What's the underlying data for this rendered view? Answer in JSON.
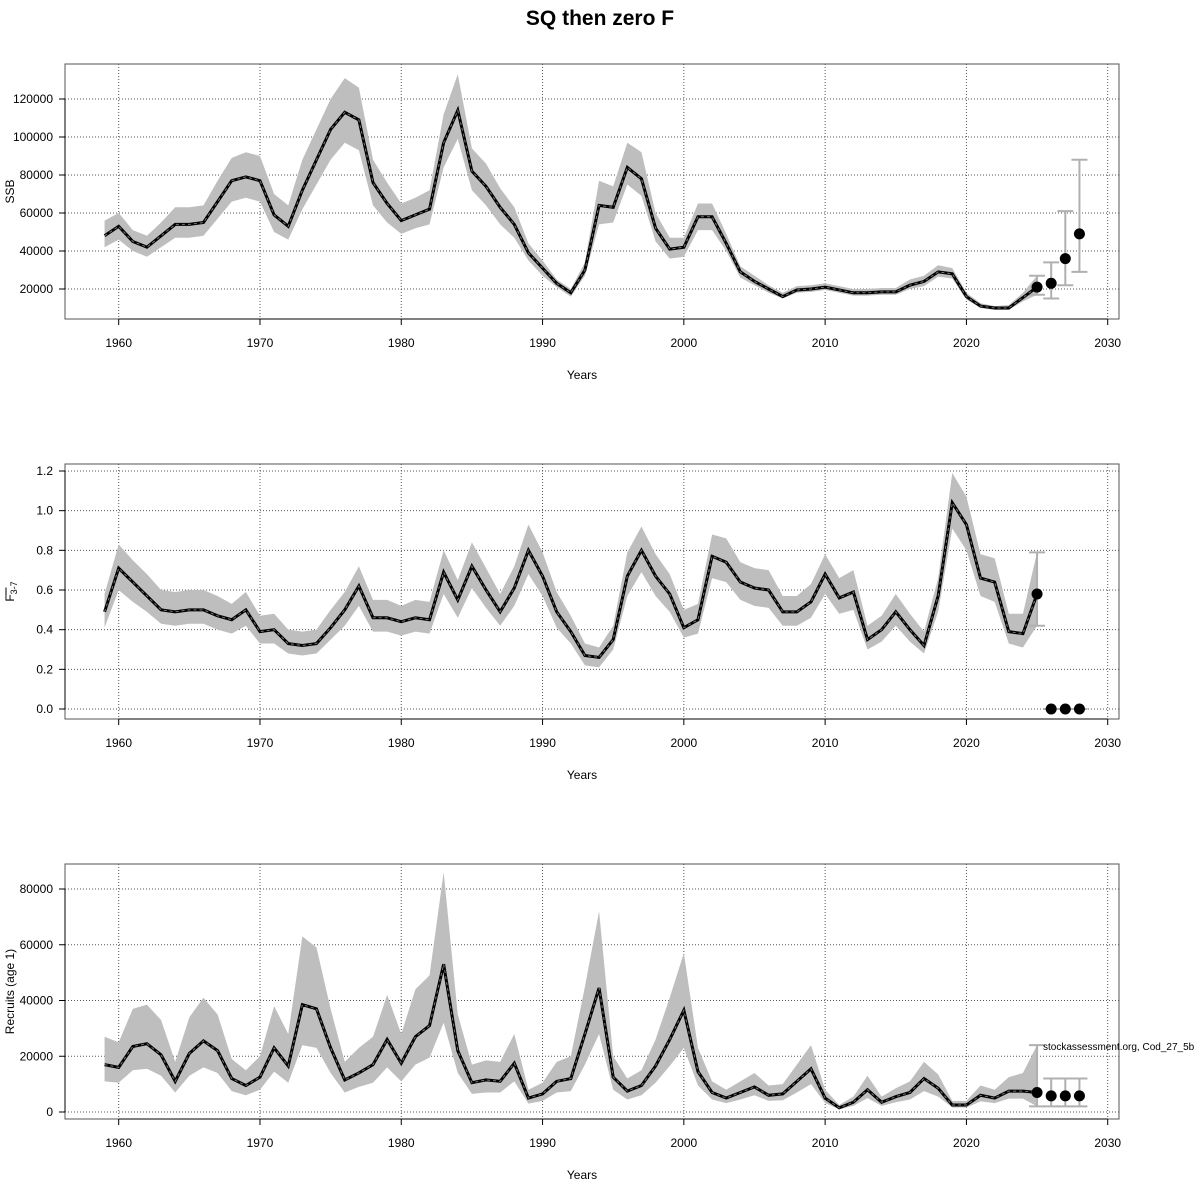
{
  "title": "SQ then zero F",
  "annotation": "stockassessment.org, Cod_27_5b",
  "colors": {
    "band": "#bebebe",
    "line": "#000000",
    "errorbar": "#b0b0b0",
    "grid": "#555555"
  },
  "chart_data": [
    {
      "type": "line",
      "name": "ssb",
      "title": "SQ then zero F",
      "xlabel": "Years",
      "ylabel": "SSB",
      "xlim": [
        1956.2,
        2030.8
      ],
      "ylim": [
        4210,
        138420
      ],
      "xticks": [
        1960,
        1970,
        1980,
        1990,
        2000,
        2010,
        2020,
        2030
      ],
      "yticks": [
        20000,
        40000,
        60000,
        80000,
        100000,
        120000
      ],
      "ytick_labels": [
        "20000",
        "40000",
        "60000",
        "80000",
        "100000",
        "120000"
      ],
      "grid": true,
      "start_year": 1959,
      "estimate": [
        48000,
        53000,
        45000,
        42000,
        48000,
        54000,
        54000,
        55000,
        66000,
        77000,
        79000,
        77000,
        59000,
        53000,
        72000,
        88000,
        104000,
        113000,
        109000,
        76000,
        65000,
        56000,
        59000,
        62000,
        97000,
        114000,
        82000,
        74000,
        63000,
        54000,
        39000,
        31000,
        23000,
        18000,
        30000,
        64000,
        63000,
        84000,
        78000,
        52000,
        41000,
        42000,
        58000,
        58000,
        44000,
        29000,
        24000,
        20000,
        16000,
        19500,
        20000,
        21000,
        19500,
        18000,
        18000,
        18500,
        18500,
        22000,
        24000,
        29000,
        28000,
        16000,
        11000,
        10000,
        10000,
        15500,
        21000
      ],
      "low": [
        42000,
        46000,
        40000,
        37000,
        42000,
        47000,
        47000,
        48000,
        57000,
        66000,
        68000,
        66000,
        50000,
        46000,
        62000,
        75000,
        88000,
        97000,
        93000,
        64000,
        55000,
        49000,
        52000,
        54000,
        84000,
        99000,
        72000,
        64000,
        54000,
        47000,
        35000,
        27000,
        21000,
        16000,
        27000,
        54000,
        55000,
        75000,
        69000,
        45000,
        36000,
        37000,
        51000,
        51000,
        40000,
        26000,
        22000,
        18000,
        15000,
        18000,
        18500,
        19500,
        18000,
        16500,
        16500,
        17000,
        17000,
        20000,
        21500,
        26500,
        25500,
        14500,
        10000,
        9000,
        9000,
        13500,
        17000
      ],
      "high": [
        56000,
        60000,
        51000,
        48000,
        55000,
        63000,
        63000,
        64000,
        77000,
        89000,
        92000,
        90000,
        70000,
        64000,
        88000,
        104000,
        120000,
        131000,
        126000,
        88000,
        76000,
        65000,
        68000,
        72000,
        112000,
        133000,
        94000,
        86000,
        73000,
        63000,
        44000,
        35000,
        25000,
        20000,
        34000,
        77000,
        74000,
        97000,
        92000,
        60000,
        47000,
        47000,
        65000,
        65000,
        49000,
        32000,
        27000,
        22000,
        18000,
        21500,
        22000,
        23000,
        21500,
        20000,
        20000,
        20500,
        20500,
        25000,
        27000,
        32500,
        31000,
        18000,
        12500,
        11000,
        11500,
        18000,
        27000
      ],
      "projection": [
        {
          "year": 2025,
          "value": 21000,
          "low": 17000,
          "high": 27000
        },
        {
          "year": 2026,
          "value": 23000,
          "low": 15000,
          "high": 34000
        },
        {
          "year": 2027,
          "value": 36000,
          "low": 22000,
          "high": 61000
        },
        {
          "year": 2028,
          "value": 49000,
          "low": 29000,
          "high": 88000
        }
      ]
    },
    {
      "type": "line",
      "name": "fbar",
      "xlabel": "Years",
      "ylabel": "F",
      "ylabel_sub": "3-7",
      "xlim": [
        1956.2,
        2030.8
      ],
      "ylim": [
        -0.0504,
        1.2353
      ],
      "xticks": [
        1960,
        1970,
        1980,
        1990,
        2000,
        2010,
        2020,
        2030
      ],
      "yticks": [
        0,
        0.2,
        0.4,
        0.6,
        0.8,
        1.0,
        1.2
      ],
      "ytick_labels": [
        "0.0",
        "0.2",
        "0.4",
        "0.6",
        "0.8",
        "1.0",
        "1.2"
      ],
      "grid": true,
      "start_year": 1959,
      "estimate": [
        0.49,
        0.71,
        0.64,
        0.57,
        0.5,
        0.49,
        0.5,
        0.5,
        0.47,
        0.45,
        0.5,
        0.39,
        0.4,
        0.33,
        0.32,
        0.33,
        0.41,
        0.5,
        0.62,
        0.46,
        0.46,
        0.44,
        0.46,
        0.45,
        0.69,
        0.55,
        0.72,
        0.6,
        0.49,
        0.61,
        0.8,
        0.67,
        0.49,
        0.39,
        0.27,
        0.26,
        0.35,
        0.67,
        0.8,
        0.67,
        0.58,
        0.41,
        0.45,
        0.77,
        0.74,
        0.64,
        0.61,
        0.6,
        0.49,
        0.49,
        0.54,
        0.68,
        0.56,
        0.59,
        0.35,
        0.4,
        0.49,
        0.4,
        0.32,
        0.57,
        1.04,
        0.93,
        0.66,
        0.64,
        0.39,
        0.38,
        0.58
      ],
      "low": [
        0.41,
        0.6,
        0.54,
        0.49,
        0.43,
        0.42,
        0.43,
        0.43,
        0.4,
        0.38,
        0.42,
        0.33,
        0.33,
        0.28,
        0.27,
        0.28,
        0.35,
        0.42,
        0.52,
        0.39,
        0.39,
        0.37,
        0.39,
        0.38,
        0.58,
        0.46,
        0.61,
        0.51,
        0.42,
        0.52,
        0.68,
        0.57,
        0.41,
        0.33,
        0.22,
        0.21,
        0.3,
        0.57,
        0.69,
        0.57,
        0.49,
        0.36,
        0.38,
        0.66,
        0.64,
        0.55,
        0.52,
        0.51,
        0.42,
        0.42,
        0.46,
        0.58,
        0.48,
        0.5,
        0.3,
        0.34,
        0.42,
        0.34,
        0.28,
        0.49,
        0.91,
        0.8,
        0.57,
        0.54,
        0.33,
        0.31,
        0.42
      ],
      "high": [
        0.58,
        0.83,
        0.75,
        0.68,
        0.6,
        0.59,
        0.6,
        0.6,
        0.57,
        0.53,
        0.59,
        0.47,
        0.48,
        0.4,
        0.39,
        0.4,
        0.5,
        0.59,
        0.72,
        0.55,
        0.55,
        0.52,
        0.55,
        0.54,
        0.8,
        0.65,
        0.84,
        0.71,
        0.58,
        0.72,
        0.93,
        0.79,
        0.59,
        0.47,
        0.33,
        0.31,
        0.42,
        0.79,
        0.92,
        0.78,
        0.68,
        0.5,
        0.53,
        0.88,
        0.86,
        0.74,
        0.71,
        0.7,
        0.57,
        0.57,
        0.63,
        0.78,
        0.66,
        0.7,
        0.42,
        0.47,
        0.58,
        0.48,
        0.39,
        0.66,
        1.19,
        1.07,
        0.78,
        0.76,
        0.48,
        0.48,
        0.79
      ],
      "projection": [
        {
          "year": 2025,
          "value": 0.58,
          "low": 0.42,
          "high": 0.79
        },
        {
          "year": 2026,
          "value": 0,
          "low": 0,
          "high": 0
        },
        {
          "year": 2027,
          "value": 0,
          "low": 0,
          "high": 0
        },
        {
          "year": 2028,
          "value": 0,
          "low": 0,
          "high": 0
        }
      ]
    },
    {
      "type": "line",
      "name": "recruits",
      "xlabel": "Years",
      "ylabel": "Recruits (age 1)",
      "xlim": [
        1956.2,
        2030.8
      ],
      "ylim": [
        -2511,
        88969
      ],
      "xticks": [
        1960,
        1970,
        1980,
        1990,
        2000,
        2010,
        2020,
        2030
      ],
      "yticks": [
        0,
        20000,
        40000,
        60000,
        80000
      ],
      "ytick_labels": [
        "0",
        "20000",
        "40000",
        "60000",
        "80000"
      ],
      "grid": true,
      "start_year": 1959,
      "estimate": [
        17000,
        16000,
        23500,
        24500,
        20500,
        11000,
        21000,
        25500,
        22000,
        12000,
        9500,
        12500,
        23000,
        16500,
        38500,
        37000,
        23000,
        11500,
        14000,
        17000,
        26000,
        17500,
        27000,
        31000,
        53000,
        22000,
        10500,
        11500,
        11000,
        17500,
        5000,
        6500,
        11000,
        12000,
        28000,
        44500,
        12500,
        7500,
        9500,
        16500,
        26000,
        36500,
        14500,
        7000,
        5000,
        7000,
        9000,
        6000,
        6500,
        11000,
        15500,
        5000,
        1500,
        3500,
        8000,
        3500,
        5500,
        7000,
        12000,
        8500,
        2500,
        2500,
        6000,
        5000,
        7500,
        7500,
        7000
      ],
      "low": [
        11000,
        10500,
        15000,
        15500,
        13000,
        7000,
        13000,
        16000,
        14000,
        7500,
        6000,
        8000,
        14500,
        10500,
        24000,
        23000,
        14000,
        7000,
        9000,
        10500,
        16000,
        11000,
        17000,
        19500,
        32000,
        14000,
        6500,
        7000,
        7000,
        11000,
        3000,
        4000,
        7000,
        7500,
        17000,
        28000,
        8000,
        4500,
        6000,
        10500,
        16500,
        23000,
        9500,
        4500,
        3200,
        4500,
        6000,
        4000,
        4200,
        7000,
        10000,
        3200,
        1000,
        2200,
        5000,
        2200,
        3500,
        4500,
        7500,
        5500,
        1600,
        1600,
        3800,
        3200,
        4800,
        4800,
        2000
      ],
      "high": [
        27000,
        25000,
        37000,
        38500,
        33000,
        18000,
        34000,
        41000,
        35000,
        19000,
        15000,
        20000,
        38000,
        28000,
        63000,
        59000,
        37000,
        18000,
        23000,
        27000,
        42000,
        28000,
        44000,
        49000,
        86000,
        35000,
        17000,
        18500,
        18000,
        28000,
        8000,
        10500,
        18000,
        20000,
        45000,
        72000,
        20000,
        12000,
        15000,
        26000,
        41000,
        57000,
        23000,
        11000,
        8000,
        11000,
        14000,
        9500,
        10000,
        17000,
        24000,
        8000,
        2500,
        5500,
        13000,
        5500,
        8500,
        11000,
        18000,
        13500,
        4000,
        4000,
        9500,
        8000,
        12500,
        14000,
        24000
      ],
      "projection": [
        {
          "year": 2025,
          "value": 7000,
          "low": 2000,
          "high": 24000
        },
        {
          "year": 2026,
          "value": 5800,
          "low": 2000,
          "high": 12000
        },
        {
          "year": 2027,
          "value": 5800,
          "low": 2000,
          "high": 12000
        },
        {
          "year": 2028,
          "value": 5800,
          "low": 2000,
          "high": 12000
        }
      ]
    }
  ]
}
